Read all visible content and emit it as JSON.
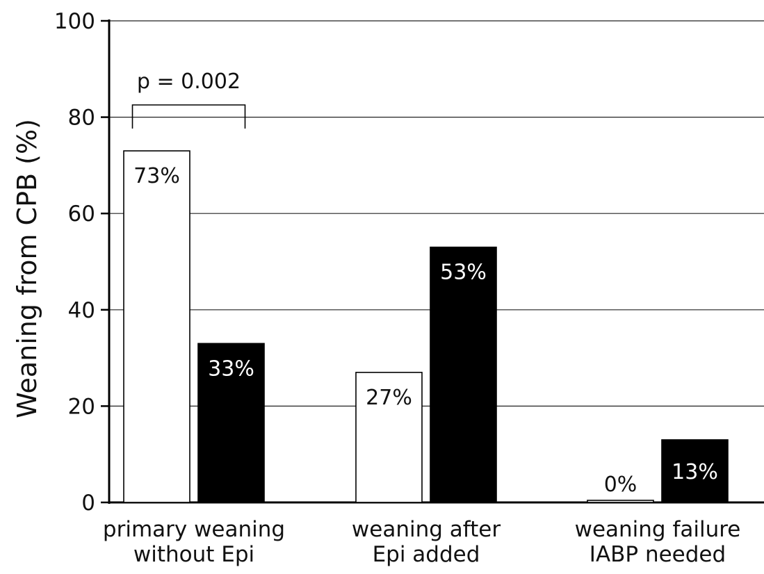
{
  "chart_data": {
    "type": "bar",
    "title": "",
    "xlabel": "",
    "ylabel": "Weaning from CPB (%)",
    "ylim": [
      0,
      100
    ],
    "yticks": [
      0,
      20,
      40,
      60,
      80,
      100
    ],
    "grid": true,
    "categories": [
      [
        "primary weaning",
        "without Epi"
      ],
      [
        "weaning after",
        "Epi added"
      ],
      [
        "weaning failure",
        "IABP needed"
      ]
    ],
    "series": [
      {
        "fill": "#ffffff",
        "values": [
          73,
          27,
          0
        ],
        "labels": [
          "73%",
          "27%",
          "0%"
        ]
      },
      {
        "fill": "#000000",
        "values": [
          33,
          53,
          13
        ],
        "labels": [
          "33%",
          "53%",
          "13%"
        ]
      }
    ],
    "annotations": [
      {
        "text": "p = 0.002"
      }
    ]
  }
}
